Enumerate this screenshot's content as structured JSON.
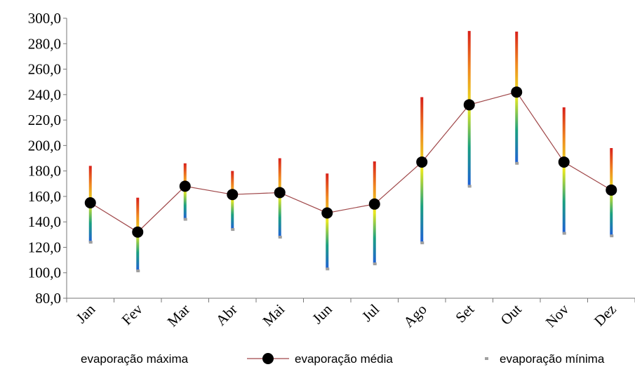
{
  "chart_data": {
    "type": "hilo",
    "categories": [
      "Jan",
      "Fev",
      "Mar",
      "Abr",
      "Mai",
      "Jun",
      "Jul",
      "Ago",
      "Set",
      "Out",
      "Nov",
      "Dez"
    ],
    "series": [
      {
        "name": "evaporação máxima",
        "color": "#d8201a",
        "gradient": [
          "#1f5fd8",
          "#1aa080",
          "#e8e820",
          "#f08a20",
          "#d8201a"
        ],
        "values": [
          184,
          159,
          186,
          180,
          190,
          178,
          187.5,
          238,
          290,
          289.5,
          230,
          198
        ]
      },
      {
        "name": "evaporação média",
        "color": "#000000",
        "line_color": "#a0484a",
        "values": [
          155,
          132,
          168,
          161.5,
          163,
          147,
          154,
          187,
          232,
          242,
          187,
          165
        ]
      },
      {
        "name": "evaporação mínima",
        "color": "#a0a0a0",
        "values": [
          124,
          101.5,
          142,
          134,
          128,
          103,
          107,
          123.5,
          168,
          186,
          131,
          129
        ]
      }
    ],
    "ylim": [
      80,
      300
    ],
    "yticks": [
      {
        "value": 80,
        "label": "80,0"
      },
      {
        "value": 100,
        "label": "100,0"
      },
      {
        "value": 120,
        "label": "120,0"
      },
      {
        "value": 140,
        "label": "140,0"
      },
      {
        "value": 160,
        "label": "160,0"
      },
      {
        "value": 180,
        "label": "180,0"
      },
      {
        "value": 200,
        "label": "200,0"
      },
      {
        "value": 220,
        "label": "220,0"
      },
      {
        "value": 240,
        "label": "240,0"
      },
      {
        "value": 260,
        "label": "260,0"
      },
      {
        "value": 280,
        "label": "280,0"
      },
      {
        "value": 300,
        "label": "300,0"
      }
    ]
  }
}
